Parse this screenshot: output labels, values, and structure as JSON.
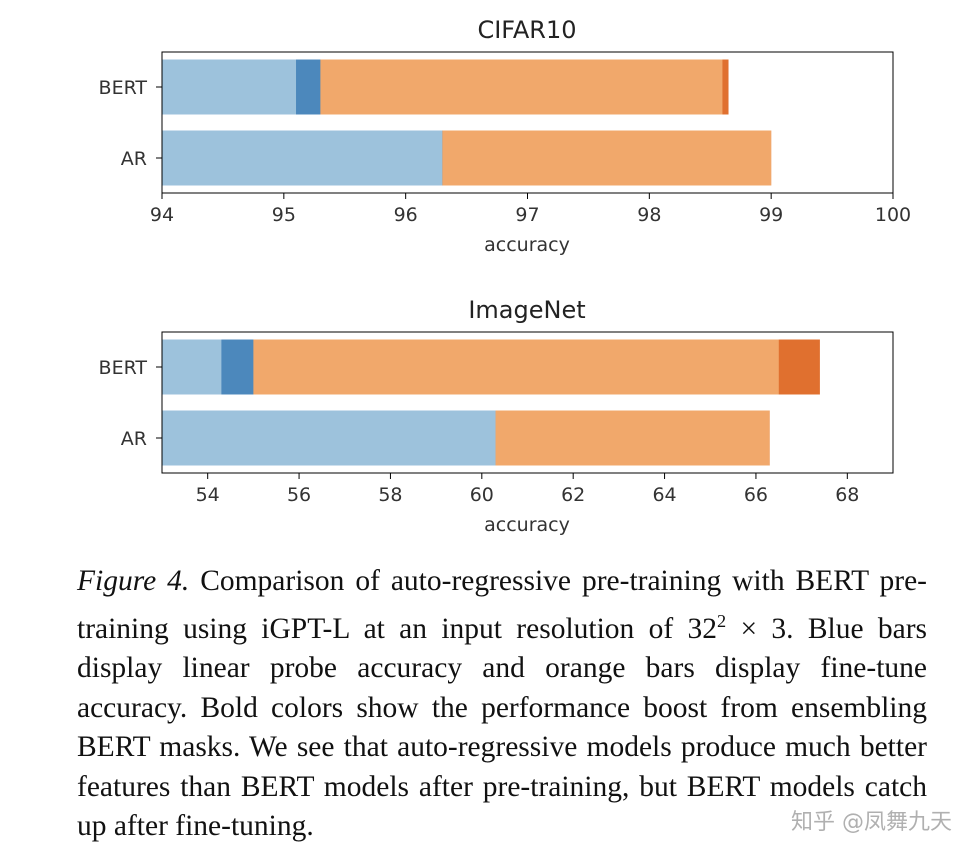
{
  "colors": {
    "linear_probe": "#9dc2dc",
    "linear_probe_boost": "#4c88bc",
    "fine_tune": "#f1a86b",
    "fine_tune_boost": "#e0702f"
  },
  "chart_data": [
    {
      "type": "bar",
      "orientation": "horizontal",
      "title": "CIFAR10",
      "xlabel": "accuracy",
      "ylabel": "",
      "xlim": [
        94,
        100
      ],
      "xticks": [
        94,
        95,
        96,
        97,
        98,
        99,
        100
      ],
      "categories": [
        "BERT",
        "AR"
      ],
      "series": [
        {
          "name": "linear probe",
          "values": [
            95.1,
            96.3
          ]
        },
        {
          "name": "linear probe (ensembled BERT masks)",
          "values": [
            95.3,
            96.3
          ]
        },
        {
          "name": "fine-tune",
          "values": [
            98.6,
            99.0
          ]
        },
        {
          "name": "fine-tune (ensembled BERT masks)",
          "values": [
            98.65,
            99.0
          ]
        }
      ]
    },
    {
      "type": "bar",
      "orientation": "horizontal",
      "title": "ImageNet",
      "xlabel": "accuracy",
      "ylabel": "",
      "xlim": [
        53,
        69
      ],
      "xticks": [
        54,
        56,
        58,
        60,
        62,
        64,
        66,
        68
      ],
      "categories": [
        "BERT",
        "AR"
      ],
      "series": [
        {
          "name": "linear probe",
          "values": [
            54.3,
            60.3
          ]
        },
        {
          "name": "linear probe (ensembled BERT masks)",
          "values": [
            55.0,
            60.3
          ]
        },
        {
          "name": "fine-tune",
          "values": [
            66.5,
            66.3
          ]
        },
        {
          "name": "fine-tune (ensembled BERT masks)",
          "values": [
            67.4,
            66.3
          ]
        }
      ]
    }
  ],
  "caption": {
    "label": "Figure 4.",
    "text_before_exponent": "Comparison of auto-regressive pre-training with BERT pre-training using iGPT-L at an input resolution of 32",
    "exponent": "2",
    "text_after_exponent": "× 3. Blue bars display linear probe accuracy and orange bars display fine-tune accuracy.  Bold colors show the performance boost from ensembling BERT masks.  We see that auto-regressive models produce much better features than BERT models after pre-training, but BERT models catch up after fine-tuning."
  },
  "watermark": "知乎 @凤舞九天"
}
